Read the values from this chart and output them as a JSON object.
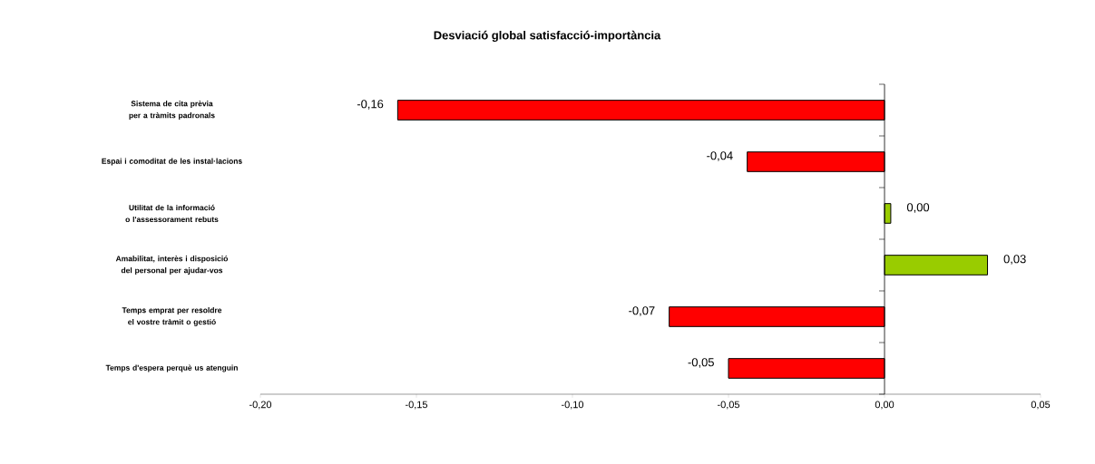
{
  "chart_data": {
    "type": "bar",
    "orientation": "horizontal",
    "title": "Desviació global satisfacció-importància",
    "categories": [
      "Sistema de cita prèvia per a tràmits padronals",
      "Espai i comoditat de les instal·lacions",
      "Utilitat de la informació o l'assessorament rebuts",
      "Amabilitat, interès i disposició del personal per ajudar-vos",
      "Temps emprat per resoldre el vostre tràmit o gestió",
      "Temps d'espera perquè us atenguin"
    ],
    "values": [
      -0.156,
      -0.044,
      0.002,
      0.033,
      -0.069,
      -0.05
    ],
    "value_labels": [
      "-0,16",
      "-0,04",
      "0,00",
      "0,03",
      "-0,07",
      "-0,05"
    ],
    "colors": [
      "#ff0000",
      "#ff0000",
      "#99cc00",
      "#99cc00",
      "#ff0000",
      "#ff0000"
    ],
    "xlim": [
      -0.2,
      0.05
    ],
    "xticks": [
      {
        "value": -0.2,
        "label": "-0,20"
      },
      {
        "value": -0.15,
        "label": "-0,15"
      },
      {
        "value": -0.1,
        "label": "-0,10"
      },
      {
        "value": -0.05,
        "label": "-0,05"
      },
      {
        "value": 0,
        "label": "0,00"
      },
      {
        "value": 0.05,
        "label": "0,05"
      }
    ]
  }
}
